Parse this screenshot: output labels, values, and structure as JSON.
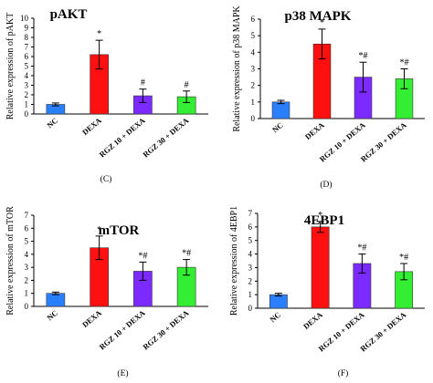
{
  "chart_data": [
    {
      "type": "bar",
      "title": "pAKT",
      "ylabel": "Relative expression of pAKT",
      "ylim": [
        0,
        10
      ],
      "yticks": [
        0,
        1,
        2,
        3,
        4,
        5,
        6,
        7,
        8,
        9,
        10
      ],
      "categories": [
        "NC",
        "DEXA",
        "RGZ 10 + DEXA",
        "RGZ 30 + DEXA"
      ],
      "values": [
        1.0,
        6.2,
        1.9,
        1.8
      ],
      "errors": [
        0.15,
        1.5,
        0.7,
        0.6
      ],
      "annotations": [
        "",
        "*",
        "#",
        "#"
      ],
      "bar_colors": [
        "#2a7fff",
        "#ff1010",
        "#7b2bff",
        "#33ee33"
      ],
      "panel_label": ""
    },
    {
      "type": "bar",
      "title": "p38 MAPK",
      "ylabel": "Relative expression of p38 MAPK",
      "ylim": [
        0,
        6
      ],
      "yticks": [
        0,
        1,
        2,
        3,
        4,
        5,
        6
      ],
      "categories": [
        "NC",
        "DEXA",
        "RGZ 10 + DEXA",
        "RGZ 30 + DEXA"
      ],
      "values": [
        1.0,
        4.5,
        2.5,
        2.4
      ],
      "errors": [
        0.1,
        0.9,
        0.9,
        0.6
      ],
      "annotations": [
        "",
        "*",
        "*#",
        "*#"
      ],
      "bar_colors": [
        "#2a7fff",
        "#ff1010",
        "#7b2bff",
        "#33ee33"
      ],
      "panel_label": ""
    },
    {
      "type": "bar",
      "title": "mTOR",
      "ylabel": "Relative expression of mTOR",
      "ylim": [
        0,
        7
      ],
      "yticks": [
        0,
        1,
        2,
        3,
        4,
        5,
        6,
        7
      ],
      "categories": [
        "NC",
        "DEXA",
        "RGZ 10 + DEXA",
        "RGZ 30 + DEXA"
      ],
      "values": [
        1.0,
        4.5,
        2.7,
        3.0
      ],
      "errors": [
        0.1,
        0.9,
        0.7,
        0.6
      ],
      "annotations": [
        "",
        "*",
        "*#",
        "*#"
      ],
      "bar_colors": [
        "#2a7fff",
        "#ff1010",
        "#7b2bff",
        "#33ee33"
      ],
      "panel_label": "(E)"
    },
    {
      "type": "bar",
      "title": "4EBP1",
      "ylabel": "Relative expression of 4EBP1",
      "ylim": [
        0,
        7
      ],
      "yticks": [
        0,
        1,
        2,
        3,
        4,
        5,
        6,
        7
      ],
      "categories": [
        "NC",
        "DEXA",
        "RGZ 10 + DEXA",
        "RGZ 30 + DEXA"
      ],
      "values": [
        1.0,
        6.0,
        3.3,
        2.7
      ],
      "errors": [
        0.1,
        0.4,
        0.7,
        0.6
      ],
      "annotations": [
        "",
        "*",
        "*#",
        "*#"
      ],
      "bar_colors": [
        "#2a7fff",
        "#ff1010",
        "#7b2bff",
        "#33ee33"
      ],
      "panel_label": "(F)"
    }
  ],
  "figure_labels": {
    "row1_left": "(C)",
    "row1_right": "(D)"
  }
}
